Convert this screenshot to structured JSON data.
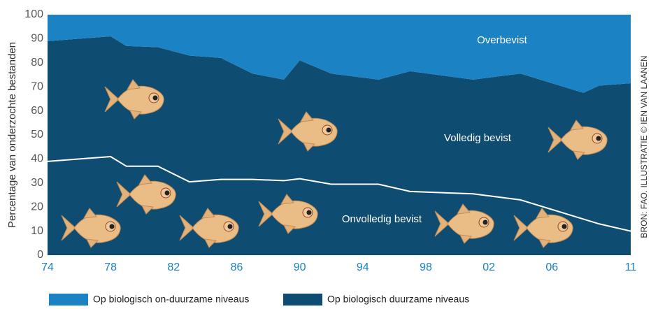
{
  "chart_data": {
    "type": "stacked-area",
    "y_label": "Percentage van onderzochte bestanden",
    "source": "BRON: FAO. ILLUSTRATIE © IEN VAN LAANEN",
    "x": [
      1974,
      1978,
      1979,
      1981,
      1983,
      1985,
      1987,
      1989,
      1990,
      1992,
      1995,
      1997,
      2001,
      2004,
      2008,
      2009,
      2011
    ],
    "xlim": [
      1974,
      2011
    ],
    "xticks": [
      {
        "value": 1974,
        "label": "74"
      },
      {
        "value": 1978,
        "label": "78"
      },
      {
        "value": 1982,
        "label": "82"
      },
      {
        "value": 1986,
        "label": "86"
      },
      {
        "value": 1990,
        "label": "90"
      },
      {
        "value": 1994,
        "label": "94"
      },
      {
        "value": 1998,
        "label": "98"
      },
      {
        "value": 2002,
        "label": "02"
      },
      {
        "value": 2006,
        "label": "06"
      },
      {
        "value": 2011,
        "label": "11"
      }
    ],
    "ylim": [
      0,
      100
    ],
    "yticks": [
      0,
      10,
      20,
      30,
      40,
      50,
      60,
      70,
      80,
      90,
      100
    ],
    "series": [
      {
        "name": "Op biologisch duurzame niveaus",
        "color": "#0f4c72",
        "values": [
          89,
          91,
          87,
          86.5,
          83,
          82,
          75.5,
          73,
          81,
          75.5,
          73,
          76.5,
          73,
          75.5,
          67.5,
          70.5,
          71.5
        ]
      },
      {
        "name": "Op biologisch on-duurzame niveaus",
        "color": "#1b82c4",
        "values": [
          11,
          9,
          13,
          13.5,
          17,
          18,
          24.5,
          27,
          19,
          24.5,
          27,
          23.5,
          27,
          24.5,
          32.5,
          29.5,
          28.5
        ]
      }
    ],
    "divider": {
      "color": "#ffffff",
      "values": [
        39,
        41,
        37,
        37,
        30.5,
        31.5,
        31.5,
        31,
        31.8,
        29.5,
        29.5,
        26.5,
        25.5,
        23,
        15,
        13,
        10
      ]
    },
    "annotations": [
      "Overbevist",
      "Volledig bevist",
      "Onvolledig bevist"
    ]
  }
}
